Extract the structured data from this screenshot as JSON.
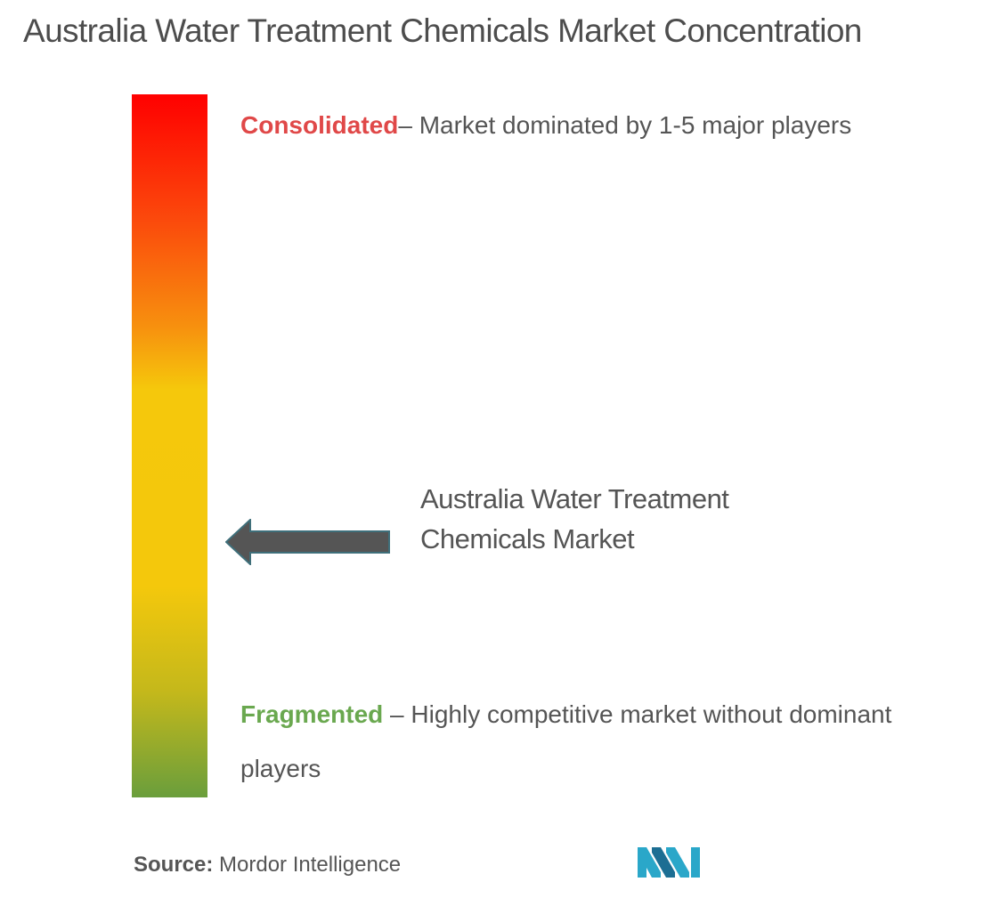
{
  "title": "Australia Water Treatment Chemicals Market Concentration",
  "scale": {
    "top_color": "#ff0000",
    "middle_color": "#f4c80c",
    "bottom_color": "#6a9e3c"
  },
  "consolidated": {
    "label": "Consolidated",
    "description": "– Market dominated by 1-5 major players",
    "color": "#e04848"
  },
  "fragmented": {
    "label": "Fragmented",
    "description": " – Highly competitive market without dominant players",
    "color": "#6aa84f"
  },
  "market_pointer": {
    "label": "Australia Water Treatment Chemicals Market",
    "arrow_icon": "left-arrow-icon",
    "arrow_color": "#555555"
  },
  "source": {
    "label": "Source:",
    "value": " Mordor Intelligence"
  },
  "logo": {
    "icon": "mordor-intelligence-logo-icon",
    "color": "#2aa7c9"
  }
}
